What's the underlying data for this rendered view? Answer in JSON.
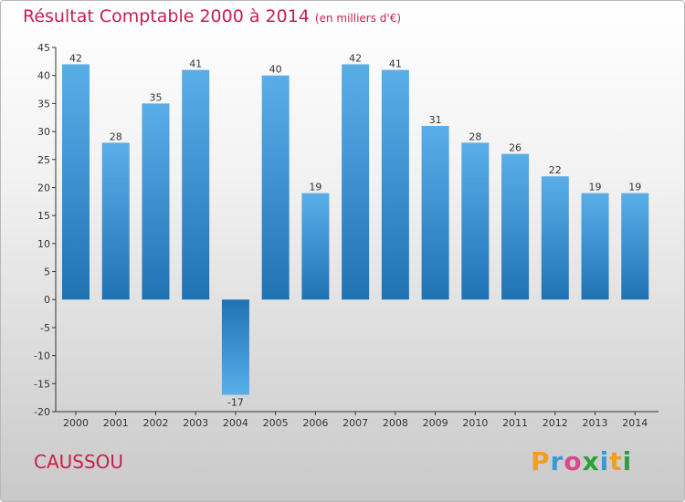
{
  "chart_data": {
    "type": "bar",
    "title": "Résultat Comptable 2000 à 2014",
    "subtitle": "(en milliers d'€)",
    "xlabel": "",
    "ylabel": "",
    "categories": [
      "2000",
      "2001",
      "2002",
      "2003",
      "2004",
      "2005",
      "2006",
      "2007",
      "2008",
      "2009",
      "2010",
      "2011",
      "2012",
      "2013",
      "2014"
    ],
    "values": [
      42,
      28,
      35,
      41,
      -17,
      40,
      19,
      42,
      41,
      31,
      28,
      26,
      22,
      19,
      19
    ],
    "data_labels": [
      "42",
      "28",
      "35",
      "41",
      "-17",
      "40",
      "19",
      "42",
      "41",
      "31",
      "28",
      "26",
      "22",
      "19",
      "19"
    ],
    "ylim": [
      -20,
      45
    ],
    "yticks": [
      -20,
      -15,
      -10,
      -5,
      0,
      5,
      10,
      15,
      20,
      25,
      30,
      35,
      40,
      45
    ],
    "grid": false,
    "colors": {
      "bar_light": "#5aaee8",
      "bar_dark": "#1f73b4",
      "title": "#c8204d"
    }
  },
  "footer": {
    "commune": "CAUSSOU",
    "logo": {
      "text": "Proxiti",
      "letter_colors": [
        "#f0a020",
        "#3a9ad9",
        "#d94a8c",
        "#2e9e3e",
        "#3a9ad9",
        "#f0a020",
        "#2e9e3e"
      ]
    }
  }
}
